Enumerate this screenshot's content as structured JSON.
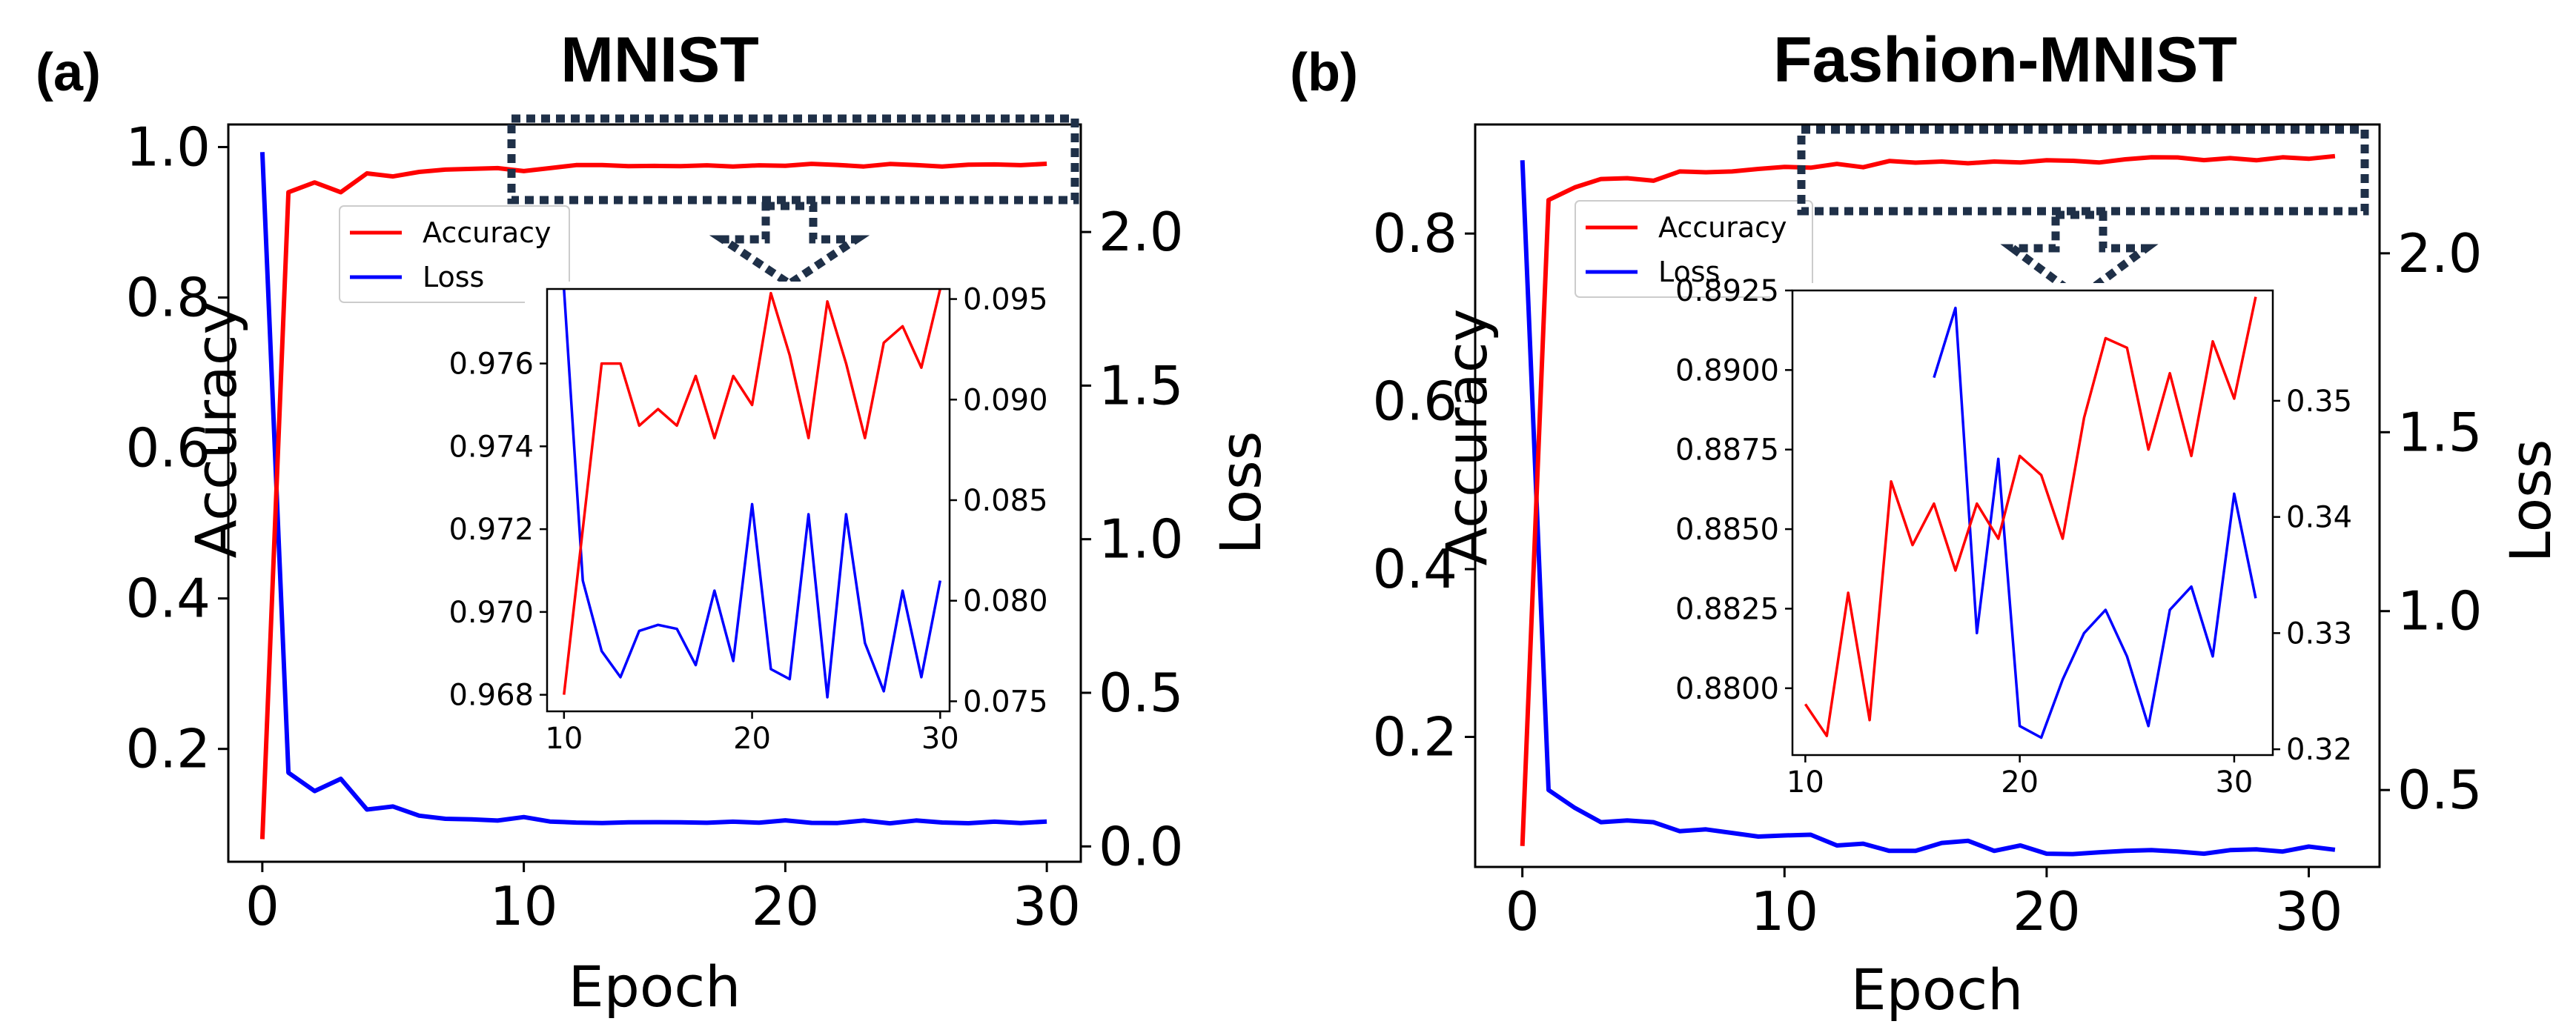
{
  "panels": [
    {
      "panel_label": "(a)",
      "title": "MNIST"
    },
    {
      "panel_label": "(b)",
      "title": "Fashion-MNIST"
    }
  ],
  "chart_data": [
    {
      "type": "line",
      "title": "MNIST",
      "xlabel": "Epoch",
      "ylabel": "Accuracy",
      "y2label": "Loss",
      "xlim": [
        -1.3,
        31.3
      ],
      "ylim": [
        0.05,
        1.03
      ],
      "y2lim": [
        -0.05,
        2.35
      ],
      "xticks": [
        "0",
        "10",
        "20",
        "30"
      ],
      "yticks": [
        "0.2",
        "0.4",
        "0.6",
        "0.8",
        "1.0"
      ],
      "y2ticks": [
        "0.0",
        "0.5",
        "1.0",
        "1.5",
        "2.0"
      ],
      "legend": [
        "Accuracy",
        "Loss"
      ],
      "colors": {
        "accuracy": "#ff0000",
        "loss": "#0000ff",
        "highlight_box": "#1f3048"
      },
      "series": [
        {
          "name": "Accuracy",
          "axis": "left",
          "x": [
            0,
            1,
            2,
            3,
            4,
            5,
            6,
            7,
            8,
            9,
            10,
            11,
            12,
            13,
            14,
            15,
            16,
            17,
            18,
            19,
            20,
            21,
            22,
            23,
            24,
            25,
            26,
            27,
            28,
            29,
            30
          ],
          "values": [
            0.08,
            0.94,
            0.953,
            0.94,
            0.965,
            0.961,
            0.967,
            0.97,
            0.971,
            0.972,
            0.968,
            0.972,
            0.976,
            0.976,
            0.9745,
            0.9749,
            0.9745,
            0.9757,
            0.9742,
            0.9757,
            0.975,
            0.9777,
            0.9762,
            0.9742,
            0.9775,
            0.976,
            0.9742,
            0.9765,
            0.9769,
            0.9759,
            0.9778
          ]
        },
        {
          "name": "Loss",
          "axis": "right",
          "x": [
            0,
            1,
            2,
            3,
            4,
            5,
            6,
            7,
            8,
            9,
            10,
            11,
            12,
            13,
            14,
            15,
            16,
            17,
            18,
            19,
            20,
            21,
            22,
            23,
            24,
            25,
            26,
            27,
            28,
            29,
            30
          ],
          "values": [
            2.26,
            0.24,
            0.18,
            0.22,
            0.12,
            0.13,
            0.1,
            0.09,
            0.088,
            0.084,
            0.0955,
            0.081,
            0.0775,
            0.0762,
            0.0785,
            0.0788,
            0.0786,
            0.0768,
            0.0805,
            0.077,
            0.0848,
            0.0766,
            0.0761,
            0.0843,
            0.0752,
            0.0843,
            0.0779,
            0.0755,
            0.0805,
            0.0762,
            0.081
          ]
        }
      ],
      "inset": {
        "xlim": [
          9.1,
          30.5
        ],
        "ylim": [
          0.9676,
          0.9778
        ],
        "y2lim": [
          0.0745,
          0.0955
        ],
        "xticks": [
          "10",
          "20",
          "30"
        ],
        "yticks": [
          "0.968",
          "0.970",
          "0.972",
          "0.974",
          "0.976"
        ],
        "y2ticks": [
          "0.075",
          "0.080",
          "0.085",
          "0.090",
          "0.095"
        ],
        "x_start": 10
      }
    },
    {
      "type": "line",
      "title": "Fashion-MNIST",
      "xlabel": "Epoch",
      "ylabel": "Accuracy",
      "y2label": "Loss",
      "xlim": [
        -1.8,
        32.7
      ],
      "ylim": [
        0.045,
        0.93
      ],
      "y2lim": [
        0.285,
        2.36
      ],
      "xticks": [
        "0",
        "10",
        "20",
        "30"
      ],
      "yticks": [
        "0.2",
        "0.4",
        "0.6",
        "0.8"
      ],
      "y2ticks": [
        "0.5",
        "1.0",
        "1.5",
        "2.0"
      ],
      "legend": [
        "Accuracy",
        "Loss"
      ],
      "colors": {
        "accuracy": "#ff0000",
        "loss": "#0000ff",
        "highlight_box": "#1f3048"
      },
      "series": [
        {
          "name": "Accuracy",
          "axis": "left",
          "x": [
            0,
            1,
            2,
            3,
            4,
            5,
            6,
            7,
            8,
            9,
            10,
            11,
            12,
            13,
            14,
            15,
            16,
            17,
            18,
            19,
            20,
            21,
            22,
            23,
            24,
            25,
            26,
            27,
            28,
            29,
            30,
            31
          ],
          "values": [
            0.07,
            0.84,
            0.855,
            0.865,
            0.866,
            0.863,
            0.874,
            0.873,
            0.874,
            0.877,
            0.8795,
            0.8785,
            0.883,
            0.879,
            0.8865,
            0.8845,
            0.8858,
            0.8837,
            0.8858,
            0.8847,
            0.8873,
            0.8867,
            0.8847,
            0.8885,
            0.891,
            0.8907,
            0.8875,
            0.8899,
            0.8873,
            0.8909,
            0.8891,
            0.8923
          ]
        },
        {
          "name": "Loss",
          "axis": "right",
          "x": [
            0,
            1,
            2,
            3,
            4,
            5,
            6,
            7,
            8,
            9,
            10,
            11,
            12,
            13,
            14,
            15,
            16,
            17,
            18,
            19,
            20,
            21,
            22,
            23,
            24,
            25,
            26,
            27,
            28,
            29,
            30,
            31
          ],
          "values": [
            2.26,
            0.5,
            0.45,
            0.41,
            0.415,
            0.41,
            0.385,
            0.39,
            0.38,
            0.37,
            0.373,
            0.375,
            0.345,
            0.35,
            0.33,
            0.33,
            0.352,
            0.358,
            0.33,
            0.345,
            0.322,
            0.321,
            0.326,
            0.33,
            0.332,
            0.328,
            0.322,
            0.332,
            0.334,
            0.328,
            0.342,
            0.333
          ]
        }
      ],
      "inset": {
        "xlim": [
          9.4,
          31.8
        ],
        "ylim": [
          0.8779,
          0.8925
        ],
        "y2lim": [
          0.3195,
          0.3595
        ],
        "xticks": [
          "10",
          "20",
          "30"
        ],
        "yticks": [
          "0.8800",
          "0.8825",
          "0.8850",
          "0.8875",
          "0.8900",
          "0.8925"
        ],
        "y2ticks": [
          "0.32",
          "0.33",
          "0.34",
          "0.35"
        ],
        "x_start": 10,
        "loss_x_start": 16
      }
    }
  ]
}
